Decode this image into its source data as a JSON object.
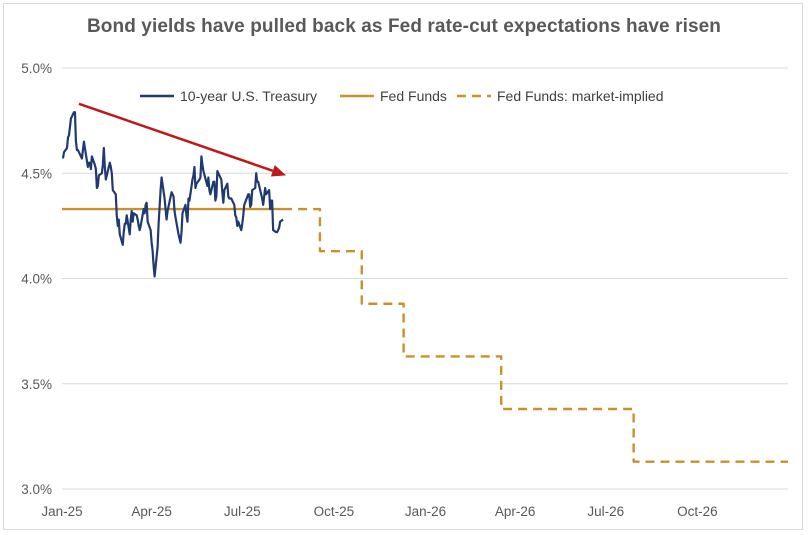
{
  "chart_data": {
    "type": "line",
    "title": "Bond yields have pulled back as Fed rate-cut expectations have risen",
    "xlabel": "",
    "ylabel": "",
    "ylim": [
      3.0,
      5.0
    ],
    "xlim": [
      "2025-01-01",
      "2026-12-31"
    ],
    "y_ticks": [
      "5.0%",
      "4.5%",
      "4.0%",
      "3.5%",
      "3.0%"
    ],
    "y_tick_values": [
      5.0,
      4.5,
      4.0,
      3.5,
      3.0
    ],
    "x_ticks": [
      "Jan-25",
      "Apr-25",
      "Jul-25",
      "Oct-25",
      "Jan-26",
      "Apr-26",
      "Jul-26",
      "Oct-26"
    ],
    "x_tick_dates": [
      "2025-01-01",
      "2025-04-01",
      "2025-07-01",
      "2025-10-01",
      "2026-01-01",
      "2026-04-01",
      "2026-07-01",
      "2026-10-01"
    ],
    "grid": "horizontal",
    "legend_position": "top",
    "series": [
      {
        "name": "10-year U.S. Treasury",
        "color": "#1f3a73",
        "style": "solid",
        "points": [
          [
            "2025-01-02",
            4.57
          ],
          [
            "2025-01-03",
            4.6
          ],
          [
            "2025-01-06",
            4.62
          ],
          [
            "2025-01-07",
            4.67
          ],
          [
            "2025-01-08",
            4.68
          ],
          [
            "2025-01-10",
            4.76
          ],
          [
            "2025-01-13",
            4.79
          ],
          [
            "2025-01-14",
            4.79
          ],
          [
            "2025-01-15",
            4.65
          ],
          [
            "2025-01-16",
            4.61
          ],
          [
            "2025-01-17",
            4.61
          ],
          [
            "2025-01-21",
            4.57
          ],
          [
            "2025-01-22",
            4.61
          ],
          [
            "2025-01-23",
            4.65
          ],
          [
            "2025-01-24",
            4.62
          ],
          [
            "2025-01-27",
            4.53
          ],
          [
            "2025-01-28",
            4.55
          ],
          [
            "2025-01-29",
            4.55
          ],
          [
            "2025-01-30",
            4.52
          ],
          [
            "2025-01-31",
            4.58
          ],
          [
            "2025-02-03",
            4.54
          ],
          [
            "2025-02-04",
            4.52
          ],
          [
            "2025-02-05",
            4.43
          ],
          [
            "2025-02-06",
            4.44
          ],
          [
            "2025-02-07",
            4.49
          ],
          [
            "2025-02-10",
            4.5
          ],
          [
            "2025-02-11",
            4.54
          ],
          [
            "2025-02-12",
            4.62
          ],
          [
            "2025-02-13",
            4.53
          ],
          [
            "2025-02-14",
            4.47
          ],
          [
            "2025-02-18",
            4.55
          ],
          [
            "2025-02-19",
            4.53
          ],
          [
            "2025-02-20",
            4.5
          ],
          [
            "2025-02-21",
            4.42
          ],
          [
            "2025-02-24",
            4.4
          ],
          [
            "2025-02-25",
            4.3
          ],
          [
            "2025-02-26",
            4.25
          ],
          [
            "2025-02-27",
            4.28
          ],
          [
            "2025-02-28",
            4.21
          ],
          [
            "2025-03-03",
            4.16
          ],
          [
            "2025-03-04",
            4.22
          ],
          [
            "2025-03-05",
            4.26
          ],
          [
            "2025-03-06",
            4.26
          ],
          [
            "2025-03-07",
            4.3
          ],
          [
            "2025-03-10",
            4.21
          ],
          [
            "2025-03-11",
            4.28
          ],
          [
            "2025-03-12",
            4.32
          ],
          [
            "2025-03-13",
            4.27
          ],
          [
            "2025-03-14",
            4.31
          ],
          [
            "2025-03-17",
            4.3
          ],
          [
            "2025-03-18",
            4.28
          ],
          [
            "2025-03-19",
            4.25
          ],
          [
            "2025-03-20",
            4.23
          ],
          [
            "2025-03-21",
            4.25
          ],
          [
            "2025-03-24",
            4.33
          ],
          [
            "2025-03-25",
            4.31
          ],
          [
            "2025-03-26",
            4.35
          ],
          [
            "2025-03-27",
            4.36
          ],
          [
            "2025-03-28",
            4.27
          ],
          [
            "2025-03-31",
            4.23
          ],
          [
            "2025-04-01",
            4.17
          ],
          [
            "2025-04-02",
            4.13
          ],
          [
            "2025-04-03",
            4.06
          ],
          [
            "2025-04-04",
            4.01
          ],
          [
            "2025-04-07",
            4.15
          ],
          [
            "2025-04-08",
            4.26
          ],
          [
            "2025-04-09",
            4.34
          ],
          [
            "2025-04-10",
            4.42
          ],
          [
            "2025-04-11",
            4.48
          ],
          [
            "2025-04-14",
            4.38
          ],
          [
            "2025-04-15",
            4.33
          ],
          [
            "2025-04-16",
            4.28
          ],
          [
            "2025-04-17",
            4.32
          ],
          [
            "2025-04-21",
            4.41
          ],
          [
            "2025-04-22",
            4.4
          ],
          [
            "2025-04-23",
            4.39
          ],
          [
            "2025-04-24",
            4.32
          ],
          [
            "2025-04-25",
            4.29
          ],
          [
            "2025-04-28",
            4.21
          ],
          [
            "2025-04-29",
            4.19
          ],
          [
            "2025-04-30",
            4.17
          ],
          [
            "2025-05-01",
            4.22
          ],
          [
            "2025-05-02",
            4.31
          ],
          [
            "2025-05-05",
            4.35
          ],
          [
            "2025-05-06",
            4.3
          ],
          [
            "2025-05-07",
            4.27
          ],
          [
            "2025-05-08",
            4.38
          ],
          [
            "2025-05-09",
            4.37
          ],
          [
            "2025-05-12",
            4.47
          ],
          [
            "2025-05-13",
            4.49
          ],
          [
            "2025-05-14",
            4.53
          ],
          [
            "2025-05-15",
            4.43
          ],
          [
            "2025-05-16",
            4.45
          ],
          [
            "2025-05-19",
            4.47
          ],
          [
            "2025-05-20",
            4.48
          ],
          [
            "2025-05-21",
            4.58
          ],
          [
            "2025-05-22",
            4.54
          ],
          [
            "2025-05-23",
            4.51
          ],
          [
            "2025-05-27",
            4.44
          ],
          [
            "2025-05-28",
            4.48
          ],
          [
            "2025-05-29",
            4.42
          ],
          [
            "2025-05-30",
            4.4
          ],
          [
            "2025-06-02",
            4.46
          ],
          [
            "2025-06-03",
            4.46
          ],
          [
            "2025-06-04",
            4.37
          ],
          [
            "2025-06-05",
            4.39
          ],
          [
            "2025-06-06",
            4.51
          ],
          [
            "2025-06-09",
            4.48
          ],
          [
            "2025-06-10",
            4.47
          ],
          [
            "2025-06-11",
            4.41
          ],
          [
            "2025-06-12",
            4.36
          ],
          [
            "2025-06-13",
            4.42
          ],
          [
            "2025-06-16",
            4.45
          ],
          [
            "2025-06-17",
            4.39
          ],
          [
            "2025-06-18",
            4.38
          ],
          [
            "2025-06-20",
            4.38
          ],
          [
            "2025-06-23",
            4.35
          ],
          [
            "2025-06-24",
            4.3
          ],
          [
            "2025-06-25",
            4.29
          ],
          [
            "2025-06-26",
            4.25
          ],
          [
            "2025-06-27",
            4.27
          ],
          [
            "2025-06-30",
            4.23
          ],
          [
            "2025-07-01",
            4.26
          ],
          [
            "2025-07-02",
            4.3
          ],
          [
            "2025-07-03",
            4.35
          ],
          [
            "2025-07-07",
            4.4
          ],
          [
            "2025-07-08",
            4.4
          ],
          [
            "2025-07-09",
            4.34
          ],
          [
            "2025-07-10",
            4.35
          ],
          [
            "2025-07-11",
            4.42
          ],
          [
            "2025-07-14",
            4.43
          ],
          [
            "2025-07-15",
            4.5
          ],
          [
            "2025-07-16",
            4.46
          ],
          [
            "2025-07-17",
            4.46
          ],
          [
            "2025-07-18",
            4.44
          ],
          [
            "2025-07-21",
            4.38
          ],
          [
            "2025-07-22",
            4.35
          ],
          [
            "2025-07-23",
            4.39
          ],
          [
            "2025-07-24",
            4.43
          ],
          [
            "2025-07-25",
            4.4
          ],
          [
            "2025-07-28",
            4.42
          ],
          [
            "2025-07-29",
            4.33
          ],
          [
            "2025-07-30",
            4.37
          ],
          [
            "2025-07-31",
            4.37
          ],
          [
            "2025-08-01",
            4.23
          ],
          [
            "2025-08-04",
            4.22
          ],
          [
            "2025-08-05",
            4.22
          ],
          [
            "2025-08-06",
            4.23
          ],
          [
            "2025-08-07",
            4.24
          ],
          [
            "2025-08-08",
            4.27
          ],
          [
            "2025-08-11",
            4.28
          ]
        ]
      },
      {
        "name": "Fed Funds",
        "color": "#c9912b",
        "style": "solid",
        "points": [
          [
            "2025-01-01",
            4.33
          ],
          [
            "2025-08-11",
            4.33
          ]
        ]
      },
      {
        "name": "Fed Funds: market-implied",
        "color": "#c9912b",
        "style": "dashed",
        "points": [
          [
            "2025-08-11",
            4.33
          ],
          [
            "2025-09-17",
            4.33
          ],
          [
            "2025-09-17",
            4.13
          ],
          [
            "2025-10-29",
            4.13
          ],
          [
            "2025-10-29",
            3.88
          ],
          [
            "2025-12-10",
            3.88
          ],
          [
            "2025-12-10",
            3.63
          ],
          [
            "2026-03-18",
            3.63
          ],
          [
            "2026-03-18",
            3.38
          ],
          [
            "2026-07-29",
            3.38
          ],
          [
            "2026-07-29",
            3.13
          ],
          [
            "2026-12-31",
            3.13
          ]
        ]
      }
    ],
    "annotations": [
      {
        "type": "arrow",
        "color": "#c0191b",
        "from": [
          "2025-01-18",
          4.83
        ],
        "to": [
          "2025-08-14",
          4.49
        ]
      }
    ]
  }
}
